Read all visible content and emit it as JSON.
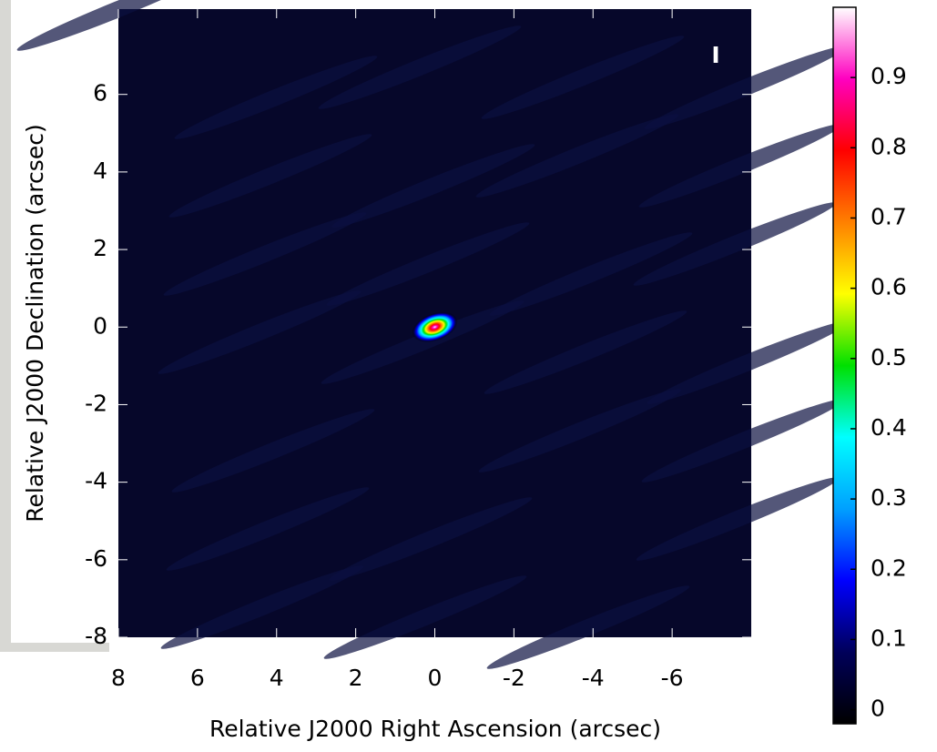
{
  "chart_data": {
    "type": "image",
    "xlabel": "Relative J2000 Right Ascension (arcsec)",
    "ylabel": "Relative J2000 Declination (arcsec)",
    "stokes": "I",
    "xlim": [
      8,
      -8
    ],
    "xticks": [
      8,
      6,
      4,
      2,
      0,
      -2,
      -4,
      -6
    ],
    "ylim": [
      -8,
      8.2
    ],
    "yticks": [
      -8,
      -6,
      -4,
      -2,
      0,
      2,
      4,
      6
    ],
    "source": {
      "x": 0,
      "y": 0,
      "peak": 1
    },
    "colorbar": {
      "lim": [
        -0.02,
        1.0
      ],
      "ticks": [
        0,
        0.1,
        0.2,
        0.3,
        0.4,
        0.5,
        0.6,
        0.7,
        0.8,
        0.9
      ]
    },
    "colormap": [
      "#000000",
      "#00005a",
      "#0000ff",
      "#00a0ff",
      "#00ffff",
      "#00e000",
      "#ffff00",
      "#ff8000",
      "#ff0000",
      "#ff00c0",
      "#ffffff"
    ],
    "background": "#06072a"
  }
}
